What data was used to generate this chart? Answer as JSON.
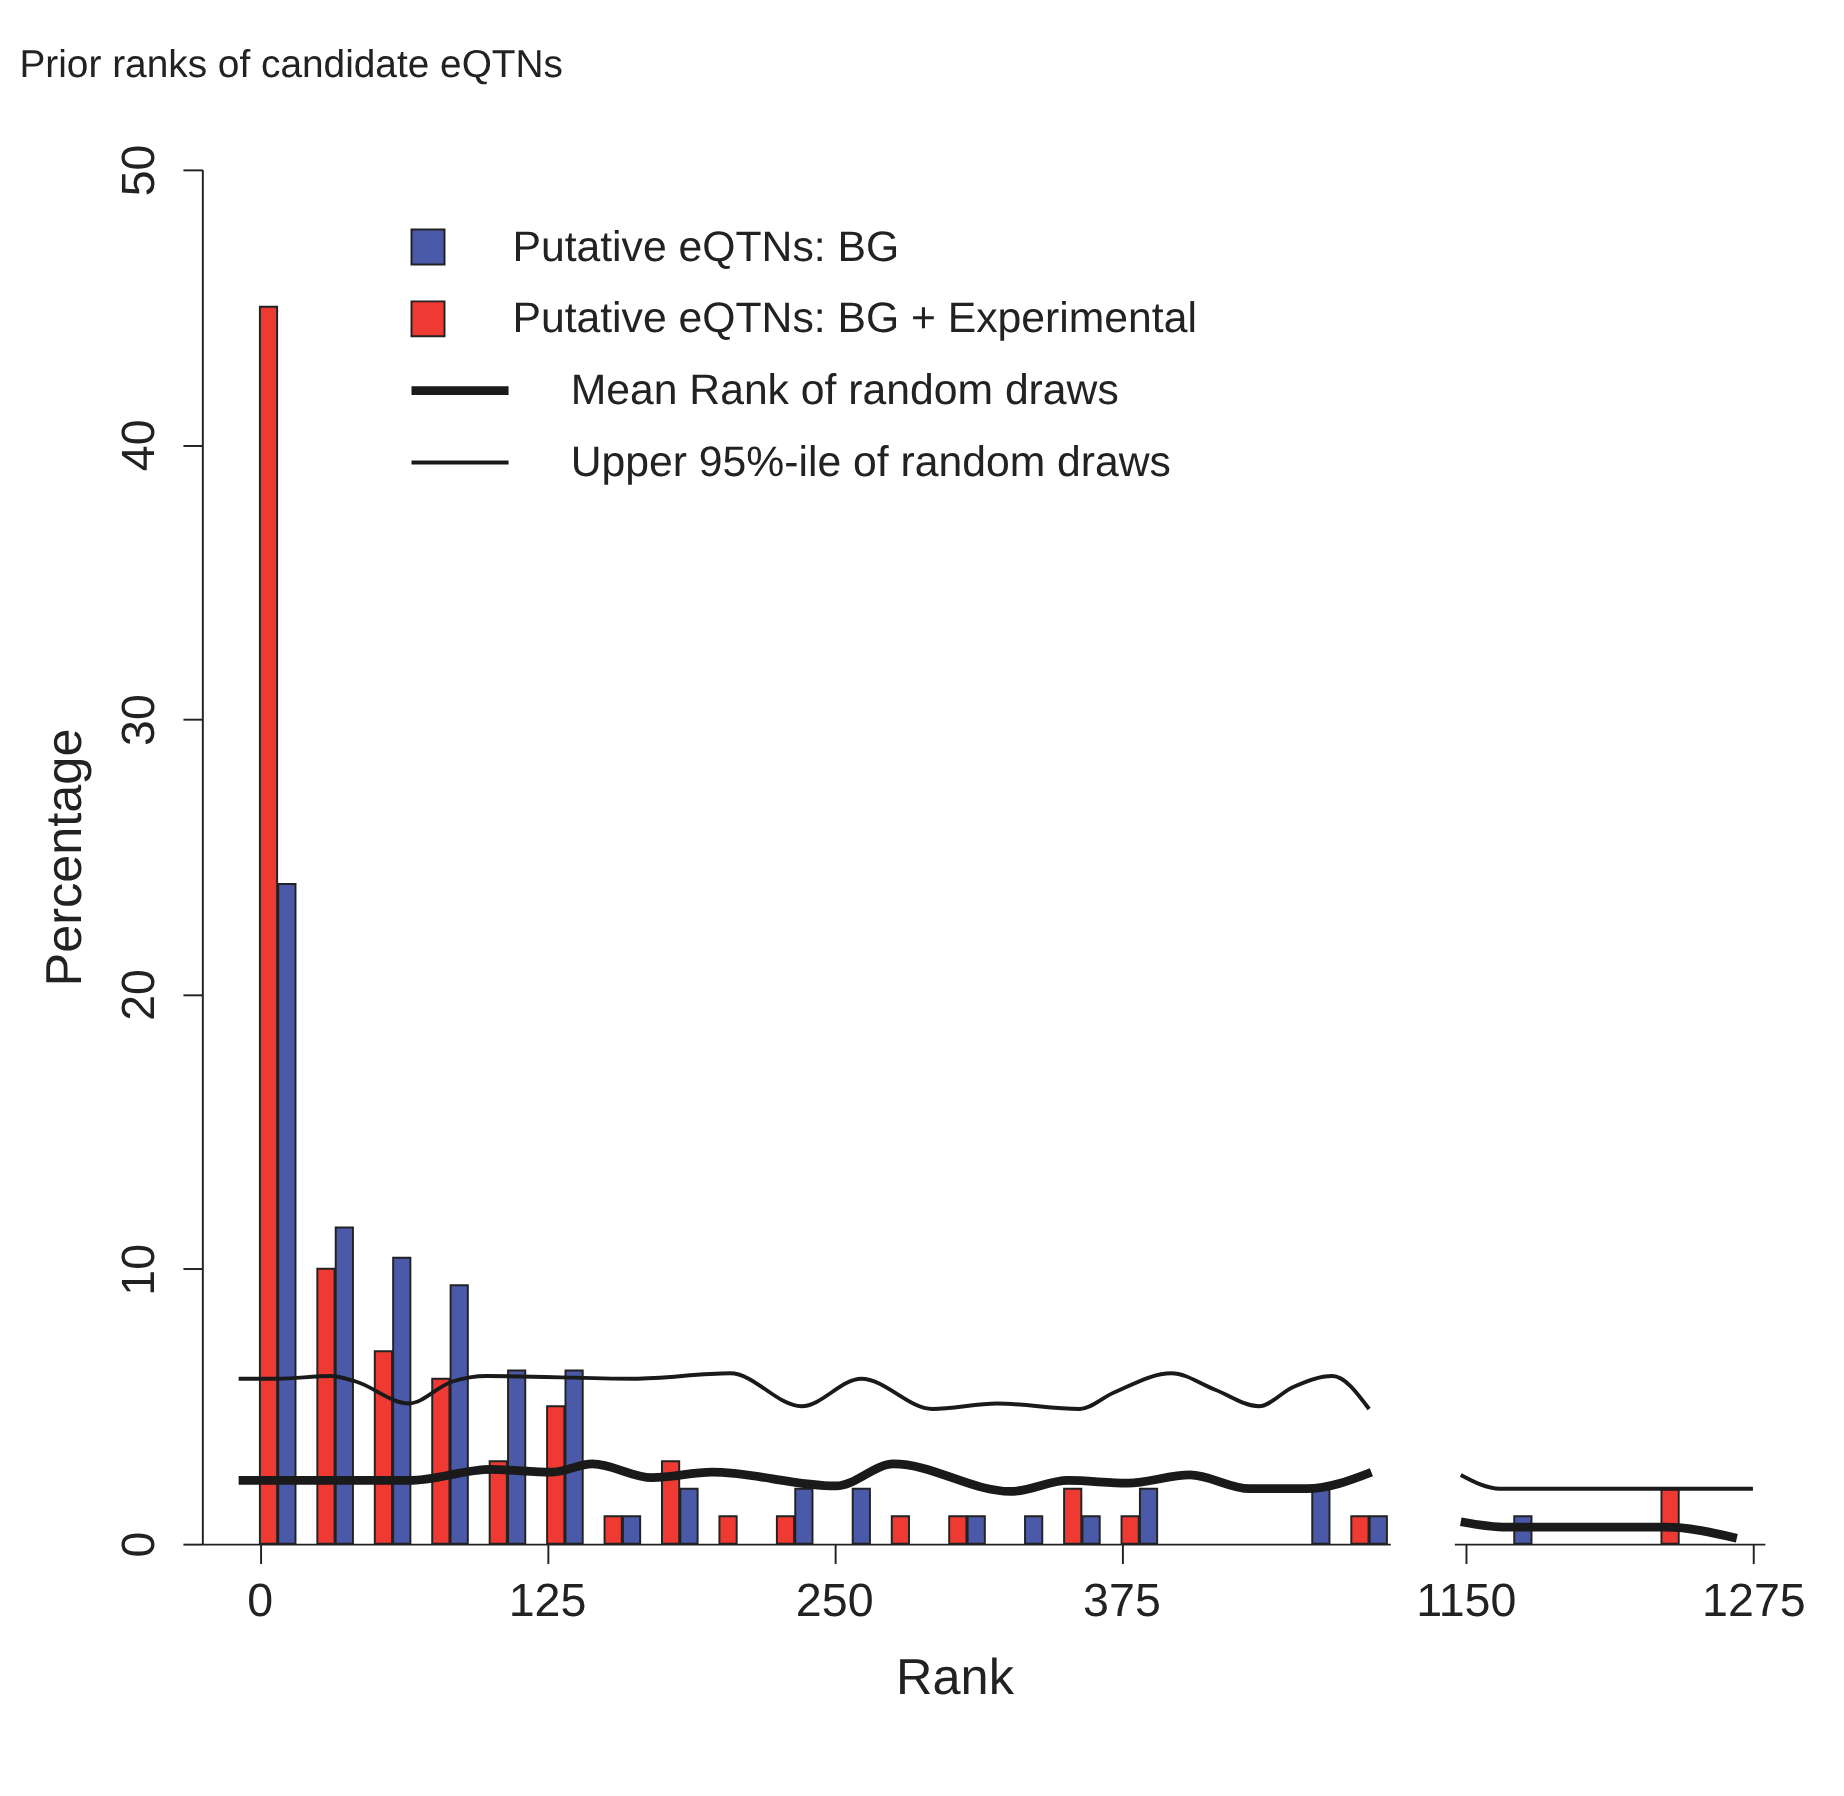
{
  "chart_data": [
    {
      "type": "bar",
      "title": "Prior ranks of candidate eQTNs",
      "xlabel": "Rank",
      "ylabel": "Percentage",
      "xlim": [
        -25,
        492
      ],
      "xticks": [
        0,
        125,
        250,
        375
      ],
      "ylim": [
        0,
        50
      ],
      "yticks": [
        0,
        10,
        20,
        30,
        40,
        50
      ],
      "grid": false,
      "legend": "top",
      "series": [
        {
          "name": "Putative eQTNs: BG",
          "color": "#4a5aa8",
          "x": [
            12,
            37,
            62,
            87,
            112,
            137,
            162,
            187,
            212,
            237,
            262,
            287,
            312,
            337,
            362,
            387,
            412,
            437,
            462,
            487
          ],
          "values": [
            24,
            11.5,
            10.4,
            9.4,
            6.3,
            6.3,
            1,
            2,
            null,
            2,
            2,
            null,
            1,
            1,
            1,
            2,
            null,
            null,
            2,
            1
          ]
        },
        {
          "name": "Putative eQTNs: BG + Experimental",
          "color": "#ee3a32",
          "x": [
            4,
            29,
            54,
            79,
            104,
            129,
            154,
            179,
            204,
            229,
            254,
            279,
            304,
            329,
            354,
            379,
            404,
            429,
            454,
            479
          ],
          "values": [
            45,
            10,
            7,
            6,
            3,
            5,
            1,
            3,
            1,
            1,
            null,
            1,
            1,
            null,
            2,
            1,
            null,
            null,
            null,
            1
          ]
        },
        {
          "name": "Mean Rank of random draws",
          "type": "line",
          "color": "#1a1a1a",
          "line_style": "solid",
          "x": [
            -9,
            65,
            101,
            127,
            145,
            171,
            197,
            251,
            276,
            327,
            352,
            378,
            405,
            431,
            456,
            484
          ],
          "values": [
            2.3,
            2.3,
            2.7,
            2.6,
            2.9,
            2.4,
            2.6,
            2.1,
            2.9,
            1.9,
            2.3,
            2.2,
            2.5,
            2.0,
            2.0,
            2.6
          ]
        },
        {
          "name": "Upper 95%-ile of random draws",
          "type": "line",
          "color": "#1a1a1a",
          "line_style": "solid",
          "x": [
            -9,
            8,
            31,
            42,
            65,
            84,
            99,
            163,
            205,
            236,
            262,
            293,
            321,
            357,
            372,
            397,
            416,
            435,
            450,
            467,
            483
          ],
          "values": [
            6.0,
            6.0,
            6.1,
            5.9,
            5.1,
            5.9,
            6.1,
            6.0,
            6.2,
            5.0,
            6.0,
            4.9,
            5.1,
            4.9,
            5.5,
            6.2,
            5.6,
            5.0,
            5.7,
            6.1,
            4.9
          ]
        }
      ]
    },
    {
      "type": "bar",
      "xlim": [
        1145,
        1280
      ],
      "xticks": [
        1150,
        1275
      ],
      "ylim": [
        0,
        50
      ],
      "grid": false,
      "tick_labels": "x",
      "series": [
        {
          "color": "#4a5aa8",
          "x": [
            1175
          ],
          "values": [
            1
          ]
        },
        {
          "color": "#ee3a32",
          "x": [
            1239
          ],
          "values": [
            2
          ]
        },
        {
          "type": "line",
          "color": "#1a1a1a",
          "line_style": "solid",
          "x": [
            1148,
            1168,
            1201,
            1237,
            1268
          ],
          "values": [
            0.8,
            0.6,
            0.6,
            0.6,
            0.2
          ]
        },
        {
          "type": "line",
          "color": "#1a1a1a",
          "line_style": "solid",
          "x": [
            1148,
            1165,
            1201,
            1275
          ],
          "values": [
            2.5,
            2.0,
            2.0,
            2.0
          ]
        }
      ]
    }
  ]
}
